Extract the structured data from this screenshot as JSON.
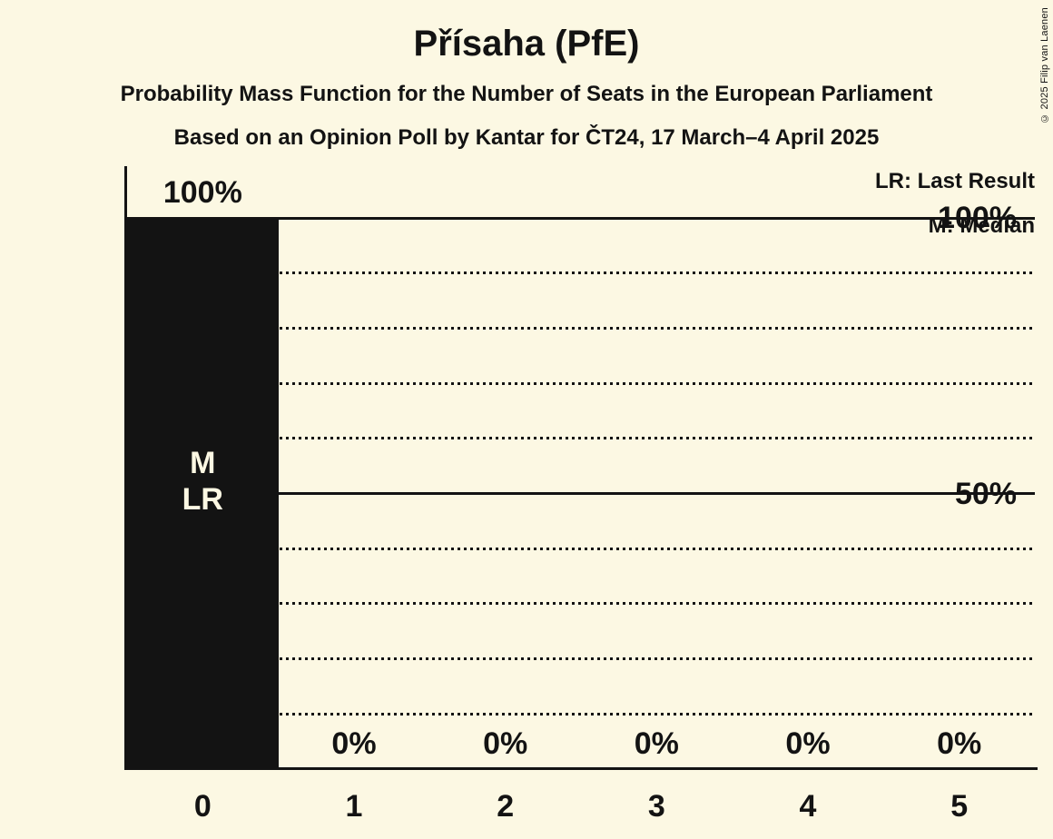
{
  "title": "Přísaha (PfE)",
  "subtitle1": "Probability Mass Function for the Number of Seats in the European Parliament",
  "subtitle2": "Based on an Opinion Poll by Kantar for ČT24, 17 March–4 April 2025",
  "legend": {
    "lr": "LR: Last Result",
    "m": "M: Median"
  },
  "copyright": "© 2025 Filip van Laenen",
  "colors": {
    "background": "#fcf8e3",
    "bar": "#131313",
    "text": "#131313",
    "bar_label": "#fcf8e3"
  },
  "chart_data": {
    "type": "bar",
    "title": "Přísaha (PfE)",
    "categories": [
      "0",
      "1",
      "2",
      "3",
      "4",
      "5"
    ],
    "values": [
      100,
      0,
      0,
      0,
      0,
      0
    ],
    "value_labels": [
      "100%",
      "0%",
      "0%",
      "0%",
      "0%",
      "0%"
    ],
    "yticks": [
      {
        "label": "100%",
        "value": 100
      },
      {
        "label": "50%",
        "value": 50
      }
    ],
    "ylim": [
      0,
      100
    ],
    "gridlines": {
      "solid": [
        100,
        50
      ],
      "dotted": [
        90,
        80,
        70,
        60,
        40,
        30,
        20,
        10
      ]
    },
    "bar_annotations": [
      {
        "category": "0",
        "lines": [
          "M",
          "LR"
        ]
      }
    ],
    "legend": [
      "LR: Last Result",
      "M: Median"
    ],
    "grid": true,
    "legend_position": "top-right"
  }
}
